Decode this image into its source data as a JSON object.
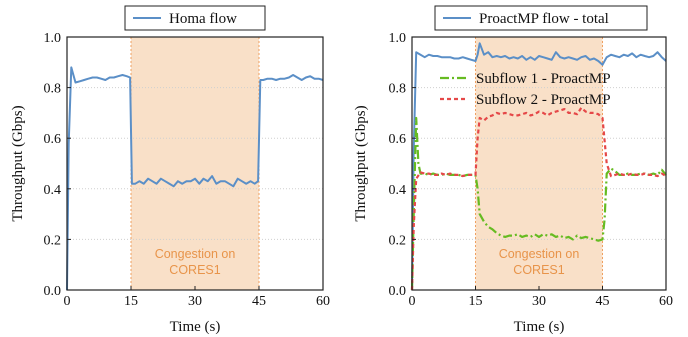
{
  "colors": {
    "total": "#5b8fc7",
    "subflow1": "#66bb22",
    "subflow2": "#e54848",
    "congestion_fill": "#f9e0c8",
    "congestion_edge": "#f0a060",
    "congestion_text": "#e8944a",
    "grid": "#cfcfcf"
  },
  "chart_data": [
    {
      "type": "line",
      "xlabel": "Time (s)",
      "ylabel": "Throughput (Gbps)",
      "xlim": [
        0,
        60
      ],
      "ylim": [
        0,
        1.0
      ],
      "xticks": [
        "0",
        "15",
        "30",
        "45",
        "60"
      ],
      "yticks": [
        "0.0",
        "0.2",
        "0.4",
        "0.6",
        "0.8",
        "1.0"
      ],
      "grid": "horizontal dotted",
      "legend_position": "top-center",
      "congestion": {
        "x_range": [
          15,
          45
        ],
        "label_line1": "Congestion on",
        "label_line2": "CORES1"
      },
      "series": [
        {
          "name": "Homa flow",
          "style": "solid",
          "color_key": "total",
          "x": [
            0,
            0.4,
            1,
            1.5,
            2,
            3,
            4,
            5,
            6,
            7,
            8,
            9,
            10,
            11,
            12,
            13,
            14,
            14.8,
            15.2,
            16,
            17,
            18,
            19,
            20,
            21,
            22,
            23,
            24,
            25,
            26,
            27,
            28,
            29,
            30,
            31,
            32,
            33,
            34,
            35,
            36,
            37,
            38,
            39,
            40,
            41,
            42,
            43,
            44,
            44.8,
            45.3,
            46,
            47,
            48,
            49,
            50,
            51,
            52,
            53,
            54,
            55,
            56,
            57,
            58,
            59,
            60
          ],
          "values": [
            0.0,
            0.58,
            0.88,
            0.85,
            0.82,
            0.825,
            0.83,
            0.835,
            0.84,
            0.84,
            0.835,
            0.83,
            0.84,
            0.84,
            0.845,
            0.85,
            0.845,
            0.84,
            0.42,
            0.42,
            0.43,
            0.42,
            0.44,
            0.43,
            0.42,
            0.44,
            0.43,
            0.42,
            0.41,
            0.43,
            0.42,
            0.43,
            0.43,
            0.44,
            0.42,
            0.44,
            0.43,
            0.45,
            0.42,
            0.43,
            0.43,
            0.42,
            0.41,
            0.44,
            0.43,
            0.42,
            0.43,
            0.42,
            0.43,
            0.83,
            0.83,
            0.835,
            0.835,
            0.83,
            0.835,
            0.835,
            0.84,
            0.85,
            0.84,
            0.83,
            0.84,
            0.845,
            0.835,
            0.835,
            0.83
          ]
        }
      ]
    },
    {
      "type": "line",
      "xlabel": "Time (s)",
      "ylabel": "Throughput (Gbps)",
      "xlim": [
        0,
        60
      ],
      "ylim": [
        0,
        1.0
      ],
      "xticks": [
        "0",
        "15",
        "30",
        "45",
        "60"
      ],
      "yticks": [
        "0.0",
        "0.2",
        "0.4",
        "0.6",
        "0.8",
        "1.0"
      ],
      "grid": "horizontal dotted",
      "legend_position": "top-center",
      "congestion": {
        "x_range": [
          15,
          45
        ],
        "label_line1": "Congestion on",
        "label_line2": "CORES1"
      },
      "series": [
        {
          "name": "ProactMP flow - total",
          "style": "solid",
          "color_key": "total",
          "x": [
            0,
            0.4,
            1,
            2,
            3,
            4,
            5,
            6,
            7,
            8,
            9,
            10,
            11,
            12,
            13,
            14,
            15,
            15.5,
            16,
            17,
            18,
            19,
            20,
            21,
            22,
            23,
            24,
            25,
            26,
            27,
            28,
            29,
            30,
            31,
            32,
            33,
            34,
            35,
            36,
            37,
            38,
            39,
            40,
            41,
            42,
            43,
            44,
            45,
            46,
            47,
            48,
            49,
            50,
            51,
            52,
            53,
            54,
            55,
            56,
            57,
            58,
            59,
            60
          ],
          "values": [
            0.0,
            0.55,
            0.94,
            0.93,
            0.92,
            0.93,
            0.925,
            0.925,
            0.92,
            0.92,
            0.92,
            0.915,
            0.915,
            0.92,
            0.915,
            0.91,
            0.905,
            0.93,
            0.975,
            0.93,
            0.94,
            0.92,
            0.925,
            0.92,
            0.925,
            0.915,
            0.92,
            0.915,
            0.925,
            0.91,
            0.92,
            0.91,
            0.925,
            0.92,
            0.915,
            0.91,
            0.94,
            0.92,
            0.915,
            0.92,
            0.915,
            0.91,
            0.92,
            0.925,
            0.91,
            0.915,
            0.905,
            0.89,
            0.92,
            0.93,
            0.925,
            0.92,
            0.93,
            0.925,
            0.935,
            0.92,
            0.93,
            0.925,
            0.92,
            0.925,
            0.94,
            0.92,
            0.905
          ]
        },
        {
          "name": "Subflow 1 - ProactMP",
          "style": "dashdot",
          "color_key": "subflow1",
          "x": [
            0,
            0.4,
            1,
            1.5,
            2,
            3,
            4,
            5,
            6,
            7,
            8,
            9,
            10,
            11,
            12,
            13,
            14,
            15,
            15.5,
            16,
            17,
            18,
            19,
            20,
            21,
            22,
            23,
            24,
            25,
            26,
            27,
            28,
            29,
            30,
            31,
            32,
            33,
            34,
            35,
            36,
            37,
            38,
            39,
            40,
            41,
            42,
            43,
            44,
            45,
            45.5,
            46,
            47,
            48,
            49,
            50,
            51,
            52,
            53,
            54,
            55,
            56,
            57,
            58,
            59,
            60
          ],
          "values": [
            0.0,
            0.3,
            0.68,
            0.5,
            0.46,
            0.46,
            0.455,
            0.46,
            0.455,
            0.455,
            0.46,
            0.455,
            0.455,
            0.455,
            0.45,
            0.455,
            0.455,
            0.455,
            0.4,
            0.3,
            0.27,
            0.25,
            0.24,
            0.225,
            0.215,
            0.21,
            0.215,
            0.215,
            0.22,
            0.21,
            0.215,
            0.21,
            0.22,
            0.21,
            0.22,
            0.215,
            0.22,
            0.21,
            0.215,
            0.205,
            0.21,
            0.2,
            0.215,
            0.205,
            0.21,
            0.205,
            0.2,
            0.195,
            0.2,
            0.28,
            0.46,
            0.48,
            0.47,
            0.455,
            0.455,
            0.46,
            0.455,
            0.455,
            0.46,
            0.46,
            0.455,
            0.46,
            0.455,
            0.475,
            0.455
          ]
        },
        {
          "name": "Subflow 2 - ProactMP",
          "style": "dashed",
          "color_key": "subflow2",
          "x": [
            0,
            0.4,
            1,
            2,
            3,
            4,
            5,
            6,
            7,
            8,
            9,
            10,
            11,
            12,
            13,
            14,
            15,
            15.5,
            16,
            17,
            18,
            19,
            20,
            21,
            22,
            23,
            24,
            25,
            26,
            27,
            28,
            29,
            30,
            31,
            32,
            33,
            34,
            35,
            36,
            37,
            38,
            39,
            40,
            41,
            42,
            43,
            44,
            45,
            46,
            47,
            48,
            49,
            50,
            51,
            52,
            53,
            54,
            55,
            56,
            57,
            58,
            59,
            60
          ],
          "values": [
            0.0,
            0.25,
            0.44,
            0.465,
            0.46,
            0.46,
            0.455,
            0.455,
            0.46,
            0.455,
            0.46,
            0.455,
            0.455,
            0.45,
            0.455,
            0.455,
            0.455,
            0.6,
            0.68,
            0.67,
            0.685,
            0.69,
            0.7,
            0.695,
            0.7,
            0.695,
            0.69,
            0.69,
            0.695,
            0.7,
            0.69,
            0.695,
            0.705,
            0.7,
            0.69,
            0.7,
            0.705,
            0.71,
            0.715,
            0.7,
            0.7,
            0.695,
            0.72,
            0.705,
            0.7,
            0.7,
            0.695,
            0.68,
            0.5,
            0.45,
            0.455,
            0.46,
            0.455,
            0.455,
            0.46,
            0.455,
            0.455,
            0.46,
            0.455,
            0.455,
            0.45,
            0.46,
            0.45
          ]
        }
      ]
    }
  ]
}
